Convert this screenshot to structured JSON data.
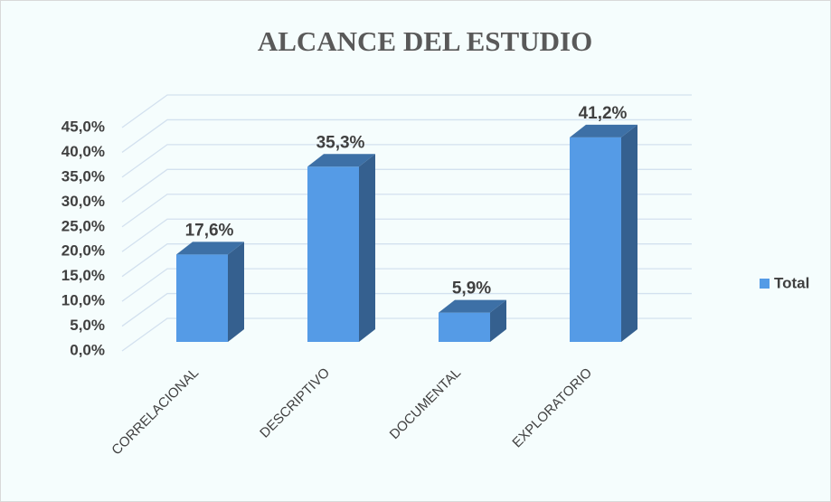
{
  "chart_data": {
    "type": "bar3d",
    "title": "ALCANCE  DEL ESTUDIO",
    "categories": [
      "CORRELACIONAL",
      "DESCRIPTIVO",
      "DOCUMENTAL",
      "EXPLORATORIO"
    ],
    "series": [
      {
        "name": "Total",
        "color": "#559be6",
        "values": [
          17.6,
          35.3,
          5.9,
          41.2
        ],
        "value_labels": [
          "17,6%",
          "35,3%",
          "5,9%",
          "41,2%"
        ]
      }
    ],
    "ylim": [
      0,
      45
    ],
    "yticks": [
      {
        "value": 0,
        "label": "0,0%"
      },
      {
        "value": 5,
        "label": "5,0%"
      },
      {
        "value": 10,
        "label": "10,0%"
      },
      {
        "value": 15,
        "label": "15,0%"
      },
      {
        "value": 20,
        "label": "20,0%"
      },
      {
        "value": 25,
        "label": "25,0%"
      },
      {
        "value": 30,
        "label": "30,0%"
      },
      {
        "value": 35,
        "label": "35,0%"
      },
      {
        "value": 40,
        "label": "40,0%"
      },
      {
        "value": 45,
        "label": "45,0%"
      }
    ],
    "grid": true,
    "legend": "right"
  }
}
